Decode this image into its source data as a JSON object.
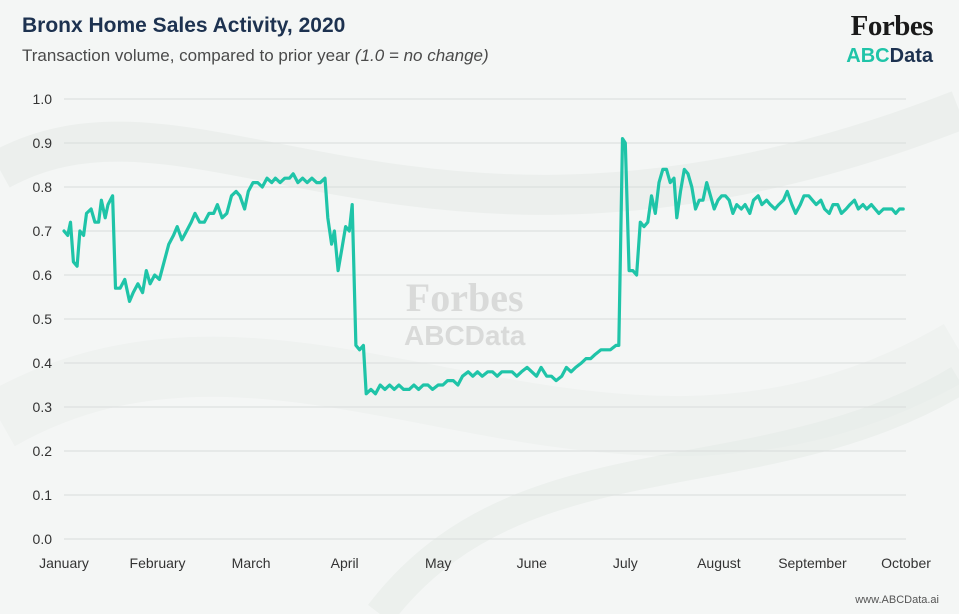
{
  "header": {
    "title": "Bronx Home Sales Activity, 2020",
    "subtitle_plain": "Transaction volume, compared to prior year ",
    "subtitle_italic": "(1.0 = no change)"
  },
  "brand": {
    "forbes": "Forbes",
    "abc": "ABC",
    "data": "Data"
  },
  "watermark": {
    "forbes": "Forbes",
    "abc": "ABCData"
  },
  "footer": {
    "url": "www.ABCData.ai"
  },
  "colors": {
    "line": "#1fc4a8",
    "title": "#1d3250",
    "grid": "#d9dcdb",
    "accent": "#1fc4a8"
  },
  "chart_data": {
    "type": "line",
    "title": "Bronx Home Sales Activity, 2020",
    "subtitle": "Transaction volume, compared to prior year (1.0 = no change)",
    "xlabel": "",
    "ylabel": "",
    "ylim": [
      0,
      1.0
    ],
    "yticks": [
      0.0,
      0.1,
      0.2,
      0.3,
      0.4,
      0.5,
      0.6,
      0.7,
      0.8,
      0.9,
      1.0
    ],
    "ytick_labels": [
      "0.0",
      "0.1",
      "0.2",
      "0.3",
      "0.4",
      "0.5",
      "0.6",
      "0.7",
      "0.8",
      "0.9",
      "1.0"
    ],
    "x_unit": "month index (0 = January 1, 9 = October 1)",
    "xlim": [
      0,
      9
    ],
    "xticks": [
      {
        "label": "January",
        "x": 0
      },
      {
        "label": "February",
        "x": 1
      },
      {
        "label": "March",
        "x": 2
      },
      {
        "label": "April",
        "x": 3
      },
      {
        "label": "May",
        "x": 4
      },
      {
        "label": "June",
        "x": 5
      },
      {
        "label": "July",
        "x": 6
      },
      {
        "label": "August",
        "x": 7
      },
      {
        "label": "September",
        "x": 8
      },
      {
        "label": "October",
        "x": 9
      }
    ],
    "grid": true,
    "legend": "none",
    "series": [
      {
        "name": "Transaction volume vs prior year",
        "points": [
          [
            0.0,
            0.7
          ],
          [
            0.04,
            0.69
          ],
          [
            0.07,
            0.72
          ],
          [
            0.1,
            0.63
          ],
          [
            0.14,
            0.62
          ],
          [
            0.17,
            0.7
          ],
          [
            0.21,
            0.69
          ],
          [
            0.24,
            0.74
          ],
          [
            0.29,
            0.75
          ],
          [
            0.33,
            0.72
          ],
          [
            0.37,
            0.72
          ],
          [
            0.4,
            0.77
          ],
          [
            0.44,
            0.73
          ],
          [
            0.47,
            0.76
          ],
          [
            0.52,
            0.78
          ],
          [
            0.55,
            0.57
          ],
          [
            0.6,
            0.57
          ],
          [
            0.65,
            0.59
          ],
          [
            0.7,
            0.54
          ],
          [
            0.74,
            0.56
          ],
          [
            0.79,
            0.58
          ],
          [
            0.84,
            0.56
          ],
          [
            0.88,
            0.61
          ],
          [
            0.92,
            0.58
          ],
          [
            0.97,
            0.6
          ],
          [
            1.02,
            0.59
          ],
          [
            1.07,
            0.63
          ],
          [
            1.12,
            0.67
          ],
          [
            1.17,
            0.69
          ],
          [
            1.21,
            0.71
          ],
          [
            1.26,
            0.68
          ],
          [
            1.31,
            0.7
          ],
          [
            1.36,
            0.72
          ],
          [
            1.4,
            0.74
          ],
          [
            1.45,
            0.72
          ],
          [
            1.5,
            0.72
          ],
          [
            1.55,
            0.74
          ],
          [
            1.6,
            0.74
          ],
          [
            1.64,
            0.76
          ],
          [
            1.69,
            0.73
          ],
          [
            1.74,
            0.74
          ],
          [
            1.79,
            0.78
          ],
          [
            1.84,
            0.79
          ],
          [
            1.88,
            0.78
          ],
          [
            1.93,
            0.75
          ],
          [
            1.97,
            0.79
          ],
          [
            2.02,
            0.81
          ],
          [
            2.07,
            0.81
          ],
          [
            2.12,
            0.8
          ],
          [
            2.17,
            0.82
          ],
          [
            2.22,
            0.81
          ],
          [
            2.26,
            0.82
          ],
          [
            2.31,
            0.81
          ],
          [
            2.36,
            0.82
          ],
          [
            2.41,
            0.82
          ],
          [
            2.45,
            0.83
          ],
          [
            2.5,
            0.81
          ],
          [
            2.55,
            0.82
          ],
          [
            2.6,
            0.81
          ],
          [
            2.65,
            0.82
          ],
          [
            2.7,
            0.81
          ],
          [
            2.74,
            0.81
          ],
          [
            2.79,
            0.82
          ],
          [
            2.82,
            0.73
          ],
          [
            2.86,
            0.67
          ],
          [
            2.89,
            0.7
          ],
          [
            2.93,
            0.61
          ],
          [
            2.97,
            0.66
          ],
          [
            3.01,
            0.71
          ],
          [
            3.05,
            0.7
          ],
          [
            3.08,
            0.76
          ],
          [
            3.12,
            0.44
          ],
          [
            3.16,
            0.43
          ],
          [
            3.2,
            0.44
          ],
          [
            3.23,
            0.33
          ],
          [
            3.28,
            0.34
          ],
          [
            3.33,
            0.33
          ],
          [
            3.38,
            0.35
          ],
          [
            3.43,
            0.34
          ],
          [
            3.48,
            0.35
          ],
          [
            3.53,
            0.34
          ],
          [
            3.58,
            0.35
          ],
          [
            3.63,
            0.34
          ],
          [
            3.69,
            0.34
          ],
          [
            3.74,
            0.35
          ],
          [
            3.79,
            0.34
          ],
          [
            3.84,
            0.35
          ],
          [
            3.89,
            0.35
          ],
          [
            3.94,
            0.34
          ],
          [
            4.0,
            0.35
          ],
          [
            4.05,
            0.35
          ],
          [
            4.1,
            0.36
          ],
          [
            4.16,
            0.36
          ],
          [
            4.21,
            0.35
          ],
          [
            4.26,
            0.37
          ],
          [
            4.32,
            0.38
          ],
          [
            4.37,
            0.37
          ],
          [
            4.42,
            0.38
          ],
          [
            4.47,
            0.37
          ],
          [
            4.53,
            0.38
          ],
          [
            4.58,
            0.38
          ],
          [
            4.63,
            0.37
          ],
          [
            4.68,
            0.38
          ],
          [
            4.74,
            0.38
          ],
          [
            4.79,
            0.38
          ],
          [
            4.84,
            0.37
          ],
          [
            4.89,
            0.38
          ],
          [
            4.95,
            0.39
          ],
          [
            5.0,
            0.38
          ],
          [
            5.05,
            0.37
          ],
          [
            5.1,
            0.39
          ],
          [
            5.16,
            0.37
          ],
          [
            5.21,
            0.37
          ],
          [
            5.26,
            0.36
          ],
          [
            5.32,
            0.37
          ],
          [
            5.37,
            0.39
          ],
          [
            5.42,
            0.38
          ],
          [
            5.47,
            0.39
          ],
          [
            5.53,
            0.4
          ],
          [
            5.58,
            0.41
          ],
          [
            5.63,
            0.41
          ],
          [
            5.68,
            0.42
          ],
          [
            5.74,
            0.43
          ],
          [
            5.79,
            0.43
          ],
          [
            5.84,
            0.43
          ],
          [
            5.9,
            0.44
          ],
          [
            5.93,
            0.44
          ],
          [
            5.97,
            0.91
          ],
          [
            6.0,
            0.9
          ],
          [
            6.04,
            0.61
          ],
          [
            6.08,
            0.61
          ],
          [
            6.12,
            0.6
          ],
          [
            6.16,
            0.72
          ],
          [
            6.2,
            0.71
          ],
          [
            6.24,
            0.72
          ],
          [
            6.28,
            0.78
          ],
          [
            6.32,
            0.74
          ],
          [
            6.36,
            0.81
          ],
          [
            6.4,
            0.84
          ],
          [
            6.44,
            0.84
          ],
          [
            6.48,
            0.81
          ],
          [
            6.52,
            0.82
          ],
          [
            6.55,
            0.73
          ],
          [
            6.59,
            0.79
          ],
          [
            6.63,
            0.84
          ],
          [
            6.67,
            0.83
          ],
          [
            6.71,
            0.8
          ],
          [
            6.75,
            0.75
          ],
          [
            6.79,
            0.77
          ],
          [
            6.83,
            0.77
          ],
          [
            6.87,
            0.81
          ],
          [
            6.91,
            0.78
          ],
          [
            6.95,
            0.75
          ],
          [
            6.99,
            0.77
          ],
          [
            7.03,
            0.78
          ],
          [
            7.07,
            0.78
          ],
          [
            7.11,
            0.77
          ],
          [
            7.15,
            0.74
          ],
          [
            7.19,
            0.76
          ],
          [
            7.24,
            0.75
          ],
          [
            7.28,
            0.76
          ],
          [
            7.33,
            0.74
          ],
          [
            7.37,
            0.77
          ],
          [
            7.42,
            0.78
          ],
          [
            7.46,
            0.76
          ],
          [
            7.51,
            0.77
          ],
          [
            7.55,
            0.76
          ],
          [
            7.6,
            0.75
          ],
          [
            7.64,
            0.76
          ],
          [
            7.69,
            0.77
          ],
          [
            7.73,
            0.79
          ],
          [
            7.78,
            0.76
          ],
          [
            7.82,
            0.74
          ],
          [
            7.87,
            0.76
          ],
          [
            7.91,
            0.78
          ],
          [
            7.96,
            0.78
          ],
          [
            8.0,
            0.77
          ],
          [
            8.04,
            0.76
          ],
          [
            8.09,
            0.77
          ],
          [
            8.13,
            0.75
          ],
          [
            8.18,
            0.74
          ],
          [
            8.22,
            0.76
          ],
          [
            8.27,
            0.76
          ],
          [
            8.31,
            0.74
          ],
          [
            8.36,
            0.75
          ],
          [
            8.4,
            0.76
          ],
          [
            8.45,
            0.77
          ],
          [
            8.49,
            0.75
          ],
          [
            8.54,
            0.76
          ],
          [
            8.58,
            0.75
          ],
          [
            8.63,
            0.76
          ],
          [
            8.67,
            0.75
          ],
          [
            8.71,
            0.74
          ],
          [
            8.76,
            0.75
          ],
          [
            8.8,
            0.75
          ],
          [
            8.85,
            0.75
          ],
          [
            8.89,
            0.74
          ],
          [
            8.93,
            0.75
          ],
          [
            8.97,
            0.75
          ]
        ]
      }
    ]
  }
}
